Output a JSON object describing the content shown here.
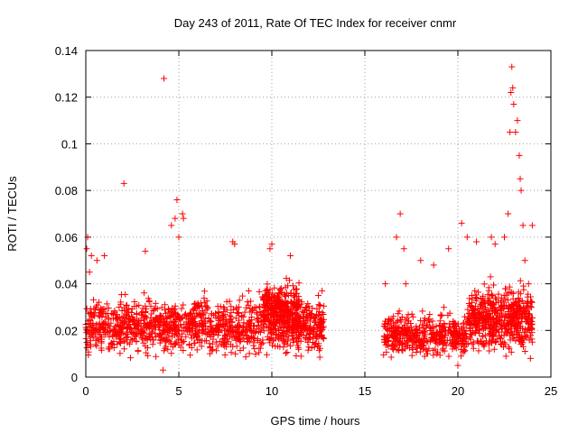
{
  "chart_data": {
    "type": "scatter",
    "title": "Day 243 of 2011, Rate Of TEC Index for receiver cnmr",
    "xlabel": "GPS time / hours",
    "ylabel": "ROTI / TECUs",
    "xlim": [
      0,
      25
    ],
    "ylim": [
      0,
      0.14
    ],
    "xticks": [
      0,
      5,
      10,
      15,
      20,
      25
    ],
    "xtick_labels": [
      "0",
      "5",
      "10",
      "15",
      "20",
      "25"
    ],
    "yticks": [
      0,
      0.02,
      0.04,
      0.06,
      0.08,
      0.1,
      0.12,
      0.14
    ],
    "ytick_labels": [
      "0",
      "0.02",
      "0.04",
      "0.06",
      "0.08",
      "0.1",
      "0.12",
      "0.14"
    ],
    "grid": true,
    "legend": "none",
    "marker": "plus",
    "color": "#ff0000",
    "series": [
      {
        "points": [
          [
            0.05,
            0.055
          ],
          [
            0.1,
            0.06
          ],
          [
            0.2,
            0.045
          ],
          [
            0.3,
            0.052
          ],
          [
            0.6,
            0.05
          ],
          [
            1.0,
            0.052
          ],
          [
            2.05,
            0.083
          ],
          [
            3.2,
            0.054
          ],
          [
            4.15,
            0.003
          ],
          [
            4.2,
            0.128
          ],
          [
            4.6,
            0.065
          ],
          [
            4.8,
            0.068
          ],
          [
            4.9,
            0.076
          ],
          [
            5.0,
            0.06
          ],
          [
            5.2,
            0.07
          ],
          [
            5.25,
            0.068
          ],
          [
            7.9,
            0.058
          ],
          [
            8.0,
            0.057
          ],
          [
            9.9,
            0.055
          ],
          [
            10.0,
            0.057
          ],
          [
            11.0,
            0.052
          ],
          [
            12.5,
            0.035
          ],
          [
            12.7,
            0.037
          ],
          [
            16.1,
            0.04
          ],
          [
            16.3,
            0.025
          ],
          [
            16.7,
            0.06
          ],
          [
            16.9,
            0.07
          ],
          [
            17.1,
            0.055
          ],
          [
            17.2,
            0.04
          ],
          [
            18.0,
            0.05
          ],
          [
            18.7,
            0.048
          ],
          [
            19.5,
            0.055
          ],
          [
            20.0,
            0.005
          ],
          [
            20.2,
            0.066
          ],
          [
            20.5,
            0.06
          ],
          [
            21.0,
            0.058
          ],
          [
            21.8,
            0.06
          ],
          [
            22.0,
            0.057
          ],
          [
            22.5,
            0.06
          ],
          [
            22.7,
            0.07
          ],
          [
            22.8,
            0.105
          ],
          [
            22.85,
            0.122
          ],
          [
            22.9,
            0.133
          ],
          [
            22.95,
            0.124
          ],
          [
            23.0,
            0.117
          ],
          [
            23.1,
            0.105
          ],
          [
            23.2,
            0.11
          ],
          [
            23.3,
            0.095
          ],
          [
            23.35,
            0.085
          ],
          [
            23.4,
            0.08
          ],
          [
            23.5,
            0.065
          ],
          [
            23.6,
            0.05
          ],
          [
            23.8,
            0.04
          ],
          [
            24.0,
            0.065
          ],
          [
            24.0,
            0.015
          ],
          [
            23.9,
            0.008
          ]
        ],
        "bands": [
          {
            "x": [
              0,
              12.8
            ],
            "y_center": 0.022,
            "y_spread": 0.014,
            "density": 1300
          },
          {
            "x": [
              9.5,
              11.5
            ],
            "y_center": 0.03,
            "y_spread": 0.012,
            "density": 250
          },
          {
            "x": [
              16,
              20.5
            ],
            "y_center": 0.018,
            "y_spread": 0.011,
            "density": 450
          },
          {
            "x": [
              20.5,
              24
            ],
            "y_center": 0.025,
            "y_spread": 0.016,
            "density": 550
          }
        ]
      }
    ]
  }
}
